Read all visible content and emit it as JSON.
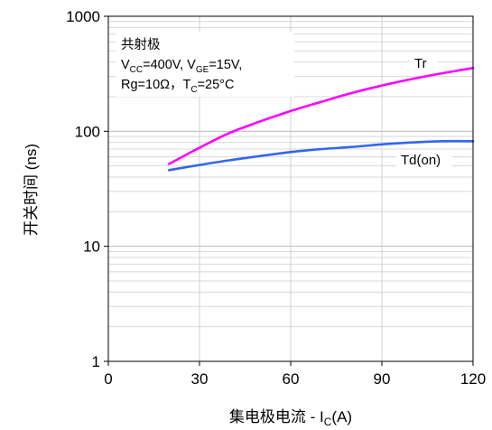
{
  "chart_data": {
    "type": "line",
    "xlabel": {
      "main": "集电极电流 - I",
      "sub": "C",
      "tail": "(A)"
    },
    "ylabel": "开关时间 (ns)",
    "xlim": [
      0,
      120
    ],
    "ylim": [
      1,
      1000
    ],
    "yscale": "log",
    "grid": true,
    "x_ticks": [
      "0",
      "30",
      "60",
      "90",
      "120"
    ],
    "y_ticks": [
      "1",
      "10",
      "100",
      "1000"
    ],
    "annotation": {
      "line1": "共射极",
      "line2": {
        "a": "V",
        "a_sub": "CC",
        "b": "=400V, V",
        "b_sub": "GE",
        "c": "=15V,"
      },
      "line3": {
        "a": "Rg=10Ω，T",
        "a_sub": "C",
        "b": "=25°C"
      }
    },
    "series": [
      {
        "name": "Tr",
        "color": "#ff00ff",
        "x": [
          20,
          30,
          40,
          50,
          60,
          70,
          80,
          90,
          100,
          110,
          120
        ],
        "values": [
          52,
          72,
          97,
          122,
          150,
          180,
          215,
          250,
          285,
          320,
          355
        ]
      },
      {
        "name": "Td(on)",
        "color": "#3366ee",
        "x": [
          20,
          30,
          40,
          50,
          60,
          70,
          80,
          90,
          100,
          110,
          120
        ],
        "values": [
          46,
          51,
          56,
          61,
          66,
          70,
          73,
          77,
          80,
          82,
          82
        ]
      }
    ]
  }
}
